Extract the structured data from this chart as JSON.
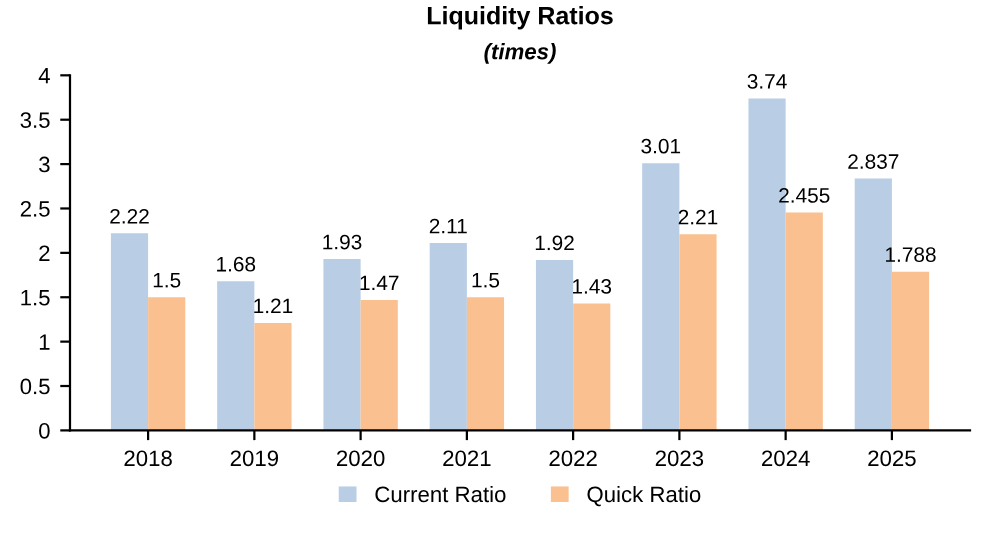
{
  "chart_data": {
    "type": "bar",
    "title": "Liquidity Ratios",
    "subtitle": "(times)",
    "categories": [
      "2018",
      "2019",
      "2020",
      "2021",
      "2022",
      "2023",
      "2024",
      "2025"
    ],
    "series": [
      {
        "name": "Current Ratio",
        "color": "#b9cde5",
        "values": [
          2.22,
          1.68,
          1.93,
          2.11,
          1.92,
          3.01,
          3.74,
          2.837
        ]
      },
      {
        "name": "Quick Ratio",
        "color": "#fac090",
        "values": [
          1.5,
          1.21,
          1.47,
          1.5,
          1.43,
          2.21,
          2.455,
          1.788
        ]
      }
    ],
    "ylim": [
      0,
      4
    ],
    "yticks": [
      0,
      0.5,
      1,
      1.5,
      2,
      2.5,
      3,
      3.5,
      4
    ],
    "grid": false,
    "legend": "bottom",
    "data_labels": true
  }
}
